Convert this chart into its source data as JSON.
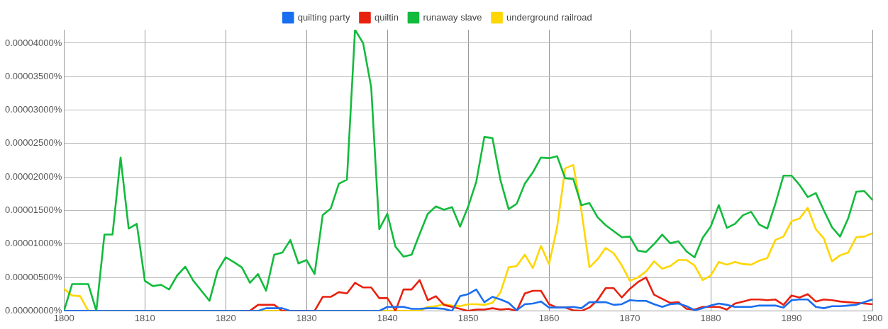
{
  "chart_data": {
    "type": "line",
    "x": [
      1800,
      1801,
      1802,
      1803,
      1804,
      1805,
      1806,
      1807,
      1808,
      1809,
      1810,
      1811,
      1812,
      1813,
      1814,
      1815,
      1816,
      1817,
      1818,
      1819,
      1820,
      1821,
      1822,
      1823,
      1824,
      1825,
      1826,
      1827,
      1828,
      1829,
      1830,
      1831,
      1832,
      1833,
      1834,
      1835,
      1836,
      1837,
      1838,
      1839,
      1840,
      1841,
      1842,
      1843,
      1844,
      1845,
      1846,
      1847,
      1848,
      1849,
      1850,
      1851,
      1852,
      1853,
      1854,
      1855,
      1856,
      1857,
      1858,
      1859,
      1860,
      1861,
      1862,
      1863,
      1864,
      1865,
      1866,
      1867,
      1868,
      1869,
      1870,
      1871,
      1872,
      1873,
      1874,
      1875,
      1876,
      1877,
      1878,
      1879,
      1880,
      1881,
      1882,
      1883,
      1884,
      1885,
      1886,
      1887,
      1888,
      1889,
      1890,
      1891,
      1892,
      1893,
      1894,
      1895,
      1896,
      1897,
      1898,
      1899,
      1900
    ],
    "series": [
      {
        "name": "quilting party",
        "color": "#1a6ef0",
        "values": [
          0,
          0,
          0,
          0,
          0,
          0,
          0,
          0,
          0,
          0,
          0,
          0,
          0,
          0,
          0,
          0,
          0,
          0,
          0,
          0,
          0,
          0,
          0,
          0,
          0,
          4e-07,
          4e-07,
          4e-07,
          0,
          0,
          0,
          0,
          0,
          0,
          0,
          0,
          0,
          0,
          0,
          0,
          6e-07,
          6e-07,
          6e-07,
          3e-07,
          3e-07,
          4e-07,
          4e-07,
          3e-07,
          0,
          2.2e-06,
          2.5e-06,
          3.2e-06,
          1.3e-06,
          2.1e-06,
          1.7e-06,
          1.2e-06,
          1e-07,
          1e-06,
          1.1e-06,
          1.4e-06,
          5e-07,
          5e-07,
          5e-07,
          6e-07,
          4e-07,
          1.3e-06,
          1.3e-06,
          1.3e-06,
          9e-07,
          1e-06,
          1.6e-06,
          1.5e-06,
          1.5e-06,
          1e-06,
          6e-07,
          1e-06,
          1.1e-06,
          7e-07,
          1e-07,
          4e-07,
          8e-07,
          1.1e-06,
          9e-07,
          6e-07,
          6e-07,
          6e-07,
          8e-07,
          8e-07,
          8e-07,
          5e-07,
          1.6e-06,
          1.7e-06,
          1.7e-06,
          6e-07,
          4e-07,
          7e-07,
          7e-07,
          8e-07,
          9e-07,
          1.3e-06,
          1.7e-06
        ]
      },
      {
        "name": "quiltin",
        "color": "#e8210f",
        "values": [
          null,
          null,
          null,
          null,
          null,
          null,
          null,
          null,
          null,
          null,
          null,
          null,
          null,
          null,
          null,
          null,
          null,
          null,
          null,
          null,
          null,
          null,
          0,
          0,
          9e-07,
          9e-07,
          9e-07,
          0,
          0,
          0,
          0,
          0,
          2.1e-06,
          2.1e-06,
          2.8e-06,
          2.6e-06,
          4.2e-06,
          3.5e-06,
          3.5e-06,
          1.9e-06,
          1.9e-06,
          0,
          3.2e-06,
          3.2e-06,
          4.6e-06,
          1.6e-06,
          2.2e-06,
          9e-07,
          6e-07,
          3e-07,
          0,
          2e-07,
          2e-07,
          4e-07,
          2e-07,
          3e-07,
          0,
          2.6e-06,
          3e-06,
          3e-06,
          1e-06,
          5e-07,
          5e-07,
          1e-07,
          0,
          5e-07,
          1.6e-06,
          3.4e-06,
          3.4e-06,
          2e-06,
          3.3e-06,
          4.3e-06,
          5e-06,
          2.4e-06,
          1.8e-06,
          1.2e-06,
          1.3e-06,
          3e-07,
          2e-07,
          6e-07,
          6e-07,
          6e-07,
          2e-07,
          1.1e-06,
          1.4e-06,
          1.7e-06,
          1.7e-06,
          1.6e-06,
          1.7e-06,
          9e-07,
          2.3e-06,
          2e-06,
          2.5e-06,
          1.4e-06,
          1.7e-06,
          1.6e-06,
          1.4e-06,
          1.3e-06,
          1.2e-06,
          1.1e-06,
          1e-06
        ]
      },
      {
        "name": "runaway slave",
        "color": "#12bb3c",
        "values": [
          0,
          4e-06,
          4e-06,
          4e-06,
          0,
          1.14e-05,
          1.14e-05,
          2.29e-05,
          1.23e-05,
          1.3e-05,
          4.5e-06,
          3.7e-06,
          3.9e-06,
          3.2e-06,
          5.3e-06,
          6.6e-06,
          4.5e-06,
          3e-06,
          1.5e-06,
          6e-06,
          8e-06,
          7.3e-06,
          6.5e-06,
          4.2e-06,
          5.5e-06,
          3e-06,
          8.4e-06,
          8.7e-06,
          1.06e-05,
          7.1e-06,
          7.6e-06,
          5.5e-06,
          1.43e-05,
          1.53e-05,
          1.9e-05,
          1.96e-05,
          4.2e-05,
          4e-05,
          3.34e-05,
          1.22e-05,
          1.45e-05,
          9.6e-06,
          8.1e-06,
          8.4e-06,
          1.15e-05,
          1.45e-05,
          1.56e-05,
          1.51e-05,
          1.55e-05,
          1.26e-05,
          1.56e-05,
          1.93e-05,
          2.6e-05,
          2.58e-05,
          1.95e-05,
          1.52e-05,
          1.6e-05,
          1.9e-05,
          2.07e-05,
          2.29e-05,
          2.28e-05,
          2.31e-05,
          1.98e-05,
          1.97e-05,
          1.58e-05,
          1.61e-05,
          1.4e-05,
          1.28e-05,
          1.19e-05,
          1.1e-05,
          1.11e-05,
          9e-06,
          8.8e-06,
          1e-05,
          1.14e-05,
          1.01e-05,
          1.04e-05,
          8.9e-06,
          8e-06,
          1.09e-05,
          1.26e-05,
          1.58e-05,
          1.24e-05,
          1.3e-05,
          1.43e-05,
          1.48e-05,
          1.29e-05,
          1.23e-05,
          1.6e-05,
          2.02e-05,
          2.02e-05,
          1.88e-05,
          1.7e-05,
          1.76e-05,
          1.5e-05,
          1.25e-05,
          1.11e-05,
          1.38e-05,
          1.78e-05,
          1.79e-05,
          1.66e-05
        ]
      },
      {
        "name": "underground railroad",
        "color": "#ffd600",
        "values": [
          3.3e-06,
          2.3e-06,
          2.2e-06,
          0,
          0,
          0,
          0,
          0,
          0,
          0,
          0,
          0,
          0,
          0,
          0,
          0,
          0,
          0,
          0,
          0,
          0,
          0,
          0,
          0,
          0,
          0,
          0,
          0,
          0,
          0,
          0,
          0,
          0,
          0,
          0,
          0,
          0,
          0,
          0,
          0,
          0,
          0,
          0,
          0,
          0,
          6e-07,
          7e-07,
          1e-06,
          8e-07,
          7e-07,
          1e-06,
          1e-06,
          9e-07,
          1.2e-06,
          2.8e-06,
          6.5e-06,
          6.7e-06,
          8.4e-06,
          6.4e-06,
          9.7e-06,
          7e-06,
          1.25e-05,
          2.13e-05,
          2.18e-05,
          1.5e-05,
          6.5e-06,
          7.7e-06,
          9.4e-06,
          8.6e-06,
          6.8e-06,
          4.5e-06,
          5e-06,
          5.9e-06,
          7.4e-06,
          6.3e-06,
          6.7e-06,
          7.6e-06,
          7.6e-06,
          6.8e-06,
          4.6e-06,
          5.3e-06,
          7.3e-06,
          6.9e-06,
          7.3e-06,
          7e-06,
          6.9e-06,
          7.5e-06,
          7.9e-06,
          1.06e-05,
          1.11e-05,
          1.34e-05,
          1.38e-05,
          1.54e-05,
          1.22e-05,
          1.08e-05,
          7.4e-06,
          8.3e-06,
          8.7e-06,
          1.1e-05,
          1.11e-05,
          1.16e-05
        ]
      }
    ],
    "xlim": [
      1800,
      1900
    ],
    "xticks": [
      1800,
      1810,
      1820,
      1830,
      1840,
      1850,
      1860,
      1870,
      1880,
      1890,
      1900
    ],
    "ylim": [
      0,
      4.2e-05
    ],
    "yticks": [
      {
        "value": 0,
        "label": "0.00000000%"
      },
      {
        "value": 5e-06,
        "label": "0.00000500%"
      },
      {
        "value": 1e-05,
        "label": "0.00001000%"
      },
      {
        "value": 1.5e-05,
        "label": "0.00001500%"
      },
      {
        "value": 2e-05,
        "label": "0.00002000%"
      },
      {
        "value": 2.5e-05,
        "label": "0.00002500%"
      },
      {
        "value": 3e-05,
        "label": "0.00003000%"
      },
      {
        "value": 3.5e-05,
        "label": "0.00003500%"
      },
      {
        "value": 4e-05,
        "label": "0.00004000%"
      }
    ],
    "grid": true,
    "legend": "top",
    "marker": "none",
    "line_style": "solid"
  }
}
